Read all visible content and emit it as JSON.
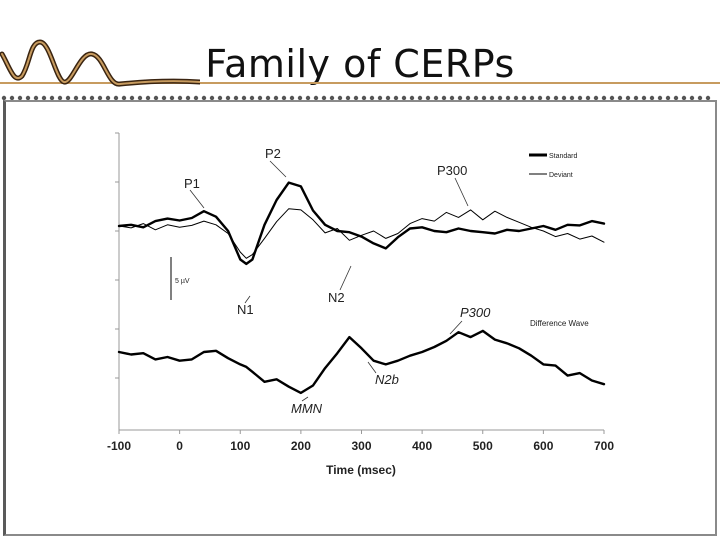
{
  "slide": {
    "title": "Family of CERPs"
  },
  "colors": {
    "accent": "#c79b5f",
    "logo_dark": "#3a2410",
    "dot": "#555555",
    "frame": "#8a8a8a",
    "line": "#000000"
  },
  "chart_data": {
    "type": "line",
    "xlabel": "Time (msec)",
    "x_ticks": [
      -100,
      0,
      100,
      200,
      300,
      400,
      500,
      600,
      700
    ],
    "xlim": [
      -100,
      700
    ],
    "scale_bar_label": "5 µV",
    "legend": [
      {
        "name": "Standard",
        "style": "thick"
      },
      {
        "name": "Deviant",
        "style": "thin"
      }
    ],
    "diff_label": "Difference Wave",
    "x": [
      -100,
      -80,
      -60,
      -40,
      -20,
      0,
      20,
      40,
      60,
      80,
      100,
      110,
      120,
      140,
      160,
      180,
      200,
      220,
      240,
      260,
      280,
      300,
      320,
      340,
      360,
      380,
      400,
      420,
      440,
      460,
      480,
      500,
      520,
      540,
      560,
      580,
      600,
      620,
      640,
      660,
      680,
      700
    ],
    "series": [
      {
        "name": "Standard",
        "style": "thick",
        "values": [
          0.8,
          1.0,
          0.6,
          1.6,
          2.0,
          1.7,
          2.1,
          3.2,
          2.3,
          0.0,
          -4.6,
          -5.3,
          -4.6,
          1.0,
          5.0,
          7.8,
          7.2,
          3.3,
          1.0,
          0.0,
          -0.2,
          -0.9,
          -2.0,
          -2.8,
          -1.0,
          0.4,
          0.6,
          0.0,
          -0.2,
          0.4,
          0.0,
          -0.2,
          -0.4,
          0.2,
          0.0,
          0.4,
          0.8,
          0.2,
          1.0,
          0.9,
          1.6,
          1.2
        ]
      },
      {
        "name": "Deviant",
        "style": "thin",
        "values": [
          0.8,
          0.5,
          1.2,
          0.2,
          1.0,
          0.6,
          0.9,
          1.6,
          1.0,
          -0.4,
          -3.4,
          -4.4,
          -3.8,
          -1.2,
          1.5,
          3.6,
          3.4,
          1.8,
          -0.3,
          0.4,
          -1.5,
          -0.7,
          0.0,
          -1.2,
          -0.4,
          1.2,
          2.0,
          1.6,
          3.0,
          2.2,
          3.4,
          1.8,
          3.2,
          2.2,
          1.4,
          0.6,
          0.0,
          -0.9,
          -0.4,
          -1.3,
          -0.8,
          -1.8
        ]
      },
      {
        "name": "Difference Wave",
        "style": "thick",
        "values": [
          0.0,
          -0.4,
          -0.2,
          -1.2,
          -0.8,
          -1.4,
          -1.2,
          0.0,
          0.2,
          -1.0,
          -2.0,
          -2.4,
          -3.2,
          -4.8,
          -4.4,
          -5.6,
          -6.6,
          -5.4,
          -2.6,
          -0.2,
          2.4,
          0.6,
          -1.4,
          -2.0,
          -1.4,
          -0.6,
          0.0,
          0.8,
          1.8,
          3.2,
          2.4,
          3.4,
          2.0,
          1.4,
          0.6,
          -0.6,
          -2.0,
          -2.2,
          -3.8,
          -3.4,
          -4.6,
          -5.2
        ]
      }
    ],
    "annotations": [
      {
        "text": "P1",
        "x": 20,
        "y": 2.6,
        "target_series": "Standard"
      },
      {
        "text": "P2",
        "x": 190,
        "y": 7.7,
        "target_series": "Standard"
      },
      {
        "text": "N1",
        "x": 110,
        "y": -5.3,
        "target_series": "Standard"
      },
      {
        "text": "N2",
        "x": 340,
        "y": -2.8,
        "target_series": "Standard"
      },
      {
        "text": "P300",
        "x": 470,
        "y": 3.2,
        "target_series": "Deviant"
      },
      {
        "text": "P300",
        "x": 470,
        "y": 3.2,
        "target_series": "Difference Wave",
        "italic": true
      },
      {
        "text": "N2b",
        "x": 350,
        "y": -1.8,
        "target_series": "Difference Wave",
        "italic": true
      },
      {
        "text": "MMN",
        "x": 205,
        "y": -6.6,
        "target_series": "Difference Wave",
        "italic": true
      }
    ]
  }
}
